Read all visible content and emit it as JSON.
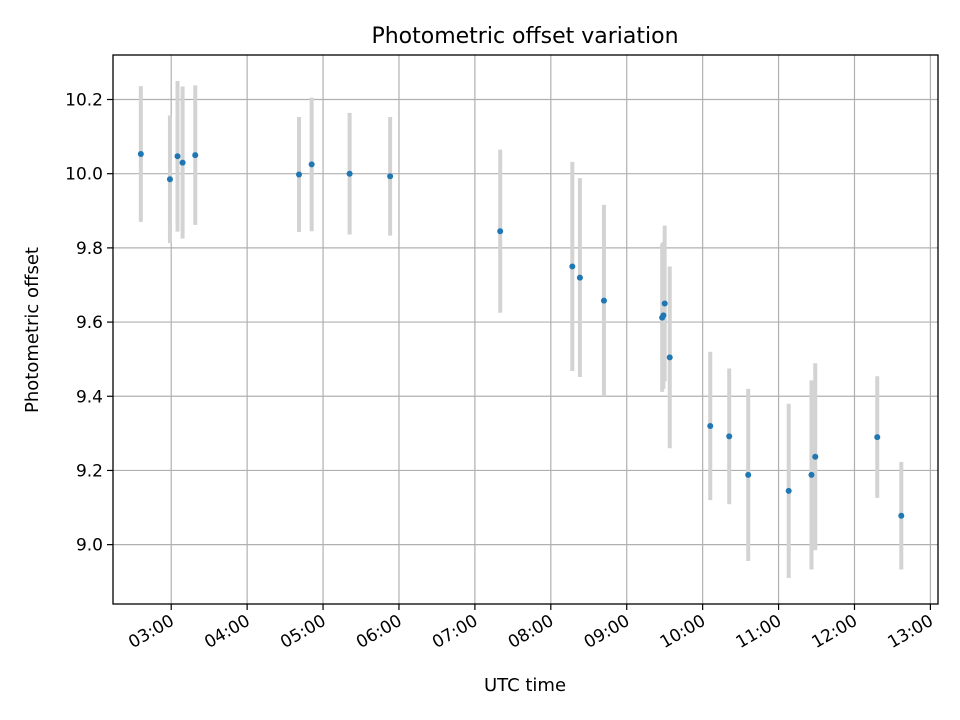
{
  "chart_data": {
    "type": "scatter",
    "title": "Photometric offset variation",
    "xlabel": "UTC time",
    "ylabel": "Photometric offset",
    "x_ticks": [
      "03:00",
      "04:00",
      "05:00",
      "06:00",
      "07:00",
      "08:00",
      "09:00",
      "10:00",
      "11:00",
      "12:00",
      "13:00"
    ],
    "y_ticks": [
      "9.0",
      "9.2",
      "9.4",
      "9.6",
      "9.8",
      "10.0",
      "10.2"
    ],
    "xlim": [
      "02:14",
      "13:06"
    ],
    "ylim": [
      8.84,
      10.32
    ],
    "grid": true,
    "legend": false,
    "colors": {
      "points": "#1f77b4",
      "errorbars": "#d3d3d3",
      "grid": "#b0b0b0"
    },
    "points": [
      {
        "x": "02:36",
        "y": 10.053,
        "err": 0.183
      },
      {
        "x": "02:59",
        "y": 9.985,
        "err": 0.172
      },
      {
        "x": "03:05",
        "y": 10.047,
        "err": 0.203
      },
      {
        "x": "03:09",
        "y": 10.03,
        "err": 0.205
      },
      {
        "x": "03:19",
        "y": 10.05,
        "err": 0.188
      },
      {
        "x": "04:41",
        "y": 9.998,
        "err": 0.155
      },
      {
        "x": "04:51",
        "y": 10.025,
        "err": 0.18
      },
      {
        "x": "05:21",
        "y": 10.0,
        "err": 0.164
      },
      {
        "x": "05:53",
        "y": 9.993,
        "err": 0.16
      },
      {
        "x": "07:20",
        "y": 9.845,
        "err": 0.22
      },
      {
        "x": "08:17",
        "y": 9.75,
        "err": 0.282
      },
      {
        "x": "08:23",
        "y": 9.72,
        "err": 0.268
      },
      {
        "x": "08:42",
        "y": 9.658,
        "err": 0.258
      },
      {
        "x": "09:28",
        "y": 9.612,
        "err": 0.2
      },
      {
        "x": "09:29",
        "y": 9.618,
        "err": 0.198
      },
      {
        "x": "09:30",
        "y": 9.65,
        "err": 0.21
      },
      {
        "x": "09:34",
        "y": 9.505,
        "err": 0.245
      },
      {
        "x": "10:06",
        "y": 9.32,
        "err": 0.2
      },
      {
        "x": "10:21",
        "y": 9.292,
        "err": 0.183
      },
      {
        "x": "10:36",
        "y": 9.188,
        "err": 0.232
      },
      {
        "x": "11:08",
        "y": 9.145,
        "err": 0.235
      },
      {
        "x": "11:26",
        "y": 9.188,
        "err": 0.255
      },
      {
        "x": "11:29",
        "y": 9.237,
        "err": 0.252
      },
      {
        "x": "12:18",
        "y": 9.29,
        "err": 0.164
      },
      {
        "x": "12:37",
        "y": 9.078,
        "err": 0.145
      }
    ]
  }
}
